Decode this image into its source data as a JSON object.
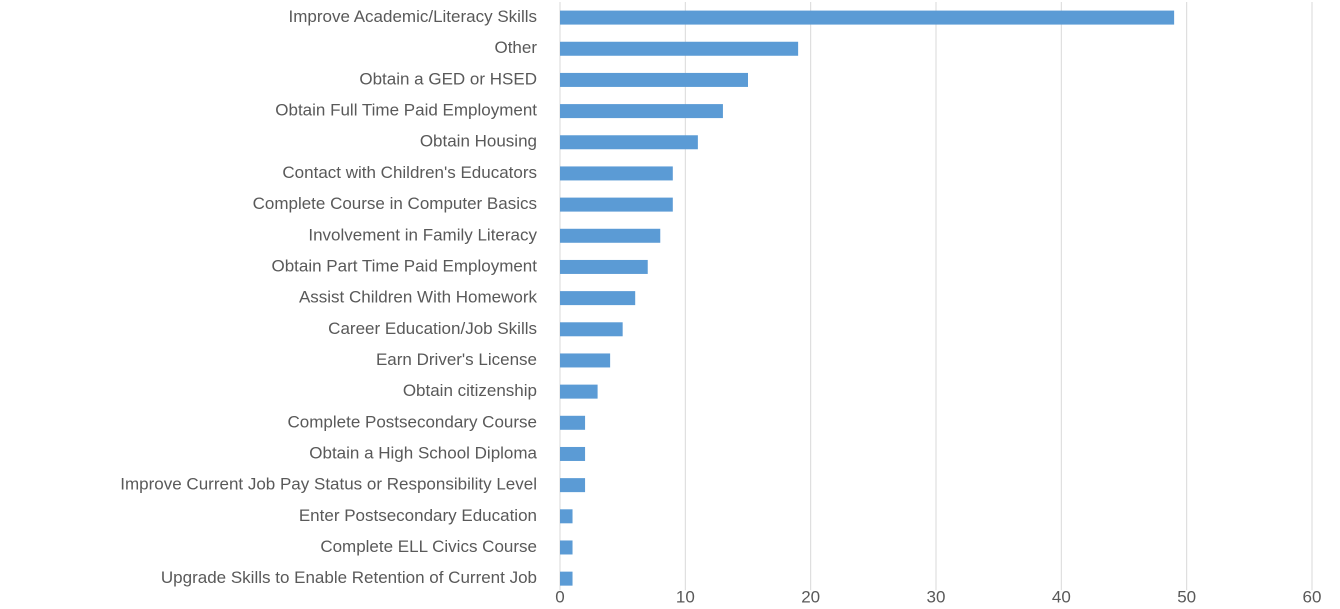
{
  "chart_data": {
    "type": "barh",
    "categories": [
      "Improve Academic/Literacy Skills",
      "Other",
      "Obtain a GED or HSED",
      "Obtain Full Time Paid Employment",
      "Obtain Housing",
      "Contact with Children's Educators",
      "Complete Course in Computer Basics",
      "Involvement in Family Literacy",
      "Obtain Part Time Paid Employment",
      "Assist Children With Homework",
      "Career Education/Job Skills",
      "Earn Driver's License",
      "Obtain citizenship",
      "Complete Postsecondary Course",
      "Obtain a High School Diploma",
      "Improve Current Job Pay Status or Responsibility Level",
      "Enter Postsecondary Education",
      "Complete ELL Civics Course",
      "Upgrade Skills to Enable Retention of Current Job"
    ],
    "values": [
      49,
      19,
      15,
      13,
      11,
      9,
      9,
      8,
      7,
      6,
      5,
      4,
      3,
      2,
      2,
      2,
      1,
      1,
      1
    ],
    "color": "#5b9bd5",
    "xlim": [
      0,
      60
    ],
    "xticks": [
      0,
      10,
      20,
      30,
      40,
      50,
      60
    ],
    "grid": true
  }
}
